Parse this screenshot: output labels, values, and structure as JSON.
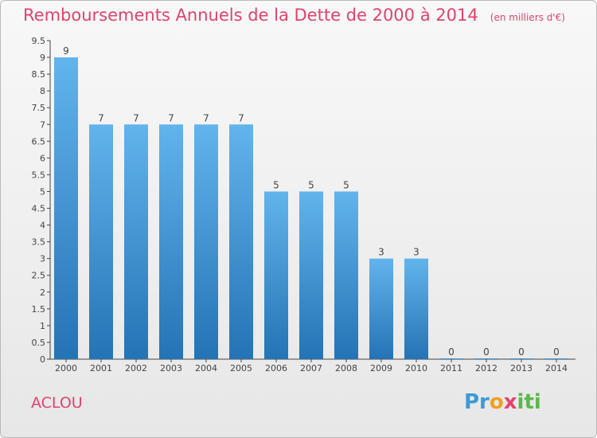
{
  "header": {
    "title": "Remboursements Annuels de la Dette de 2000 à 2014",
    "subtitle": "(en milliers d'€)"
  },
  "footer": {
    "commune": "ACLOU",
    "logo": "Proxiti"
  },
  "colors": {
    "title": "#e3426c",
    "bar_top": "#62b4ec",
    "bar_bottom": "#2473b5",
    "axis": "#444444"
  },
  "chart_data": {
    "type": "bar",
    "title": "Remboursements Annuels de la Dette de 2000 à 2014",
    "subtitle": "(en milliers d'€)",
    "xlabel": "",
    "ylabel": "",
    "categories": [
      "2000",
      "2001",
      "2002",
      "2003",
      "2004",
      "2005",
      "2006",
      "2007",
      "2008",
      "2009",
      "2010",
      "2011",
      "2012",
      "2013",
      "2014"
    ],
    "values": [
      9,
      7,
      7,
      7,
      7,
      7,
      5,
      5,
      5,
      3,
      3,
      0,
      0,
      0,
      0
    ],
    "value_labels": [
      "9",
      "7",
      "7",
      "7",
      "7",
      "7",
      "5",
      "5",
      "5",
      "3",
      "3",
      "0",
      "0",
      "0",
      "0"
    ],
    "ylim": [
      0,
      9.5
    ],
    "yticks": [
      0,
      0.5,
      1,
      1.5,
      2,
      2.5,
      3,
      3.5,
      4,
      4.5,
      5,
      5.5,
      6,
      6.5,
      7,
      7.5,
      8,
      8.5,
      9,
      9.5
    ],
    "ytick_labels": [
      "0",
      "0.5",
      "1",
      "1.5",
      "2",
      "2.5",
      "3",
      "3.5",
      "4",
      "4.5",
      "5",
      "5.5",
      "6",
      "6.5",
      "7",
      "7.5",
      "8",
      "8.5",
      "9",
      "9.5"
    ],
    "grid": false,
    "legend": "none"
  }
}
